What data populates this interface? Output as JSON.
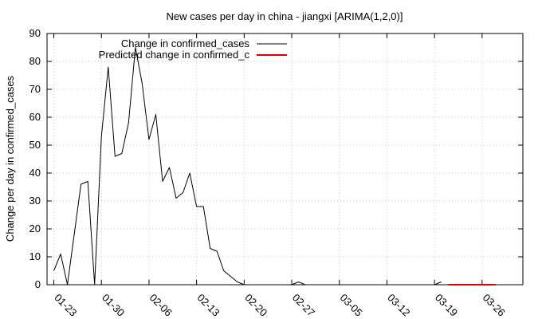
{
  "chart_data": {
    "type": "line",
    "title": "New cases per day in china - jiangxi [ARIMA(1,2,0)]",
    "xlabel": "",
    "ylabel": "Change per day in confirmed_cases",
    "ylim": [
      0,
      90
    ],
    "yticks": [
      0,
      10,
      20,
      30,
      40,
      50,
      60,
      70,
      80,
      90
    ],
    "xlim": [
      "01-22",
      "04-01"
    ],
    "xticks": [
      "01-23",
      "01-30",
      "02-06",
      "02-13",
      "02-20",
      "02-27",
      "03-05",
      "03-12",
      "03-19",
      "03-26"
    ],
    "grid": true,
    "legend_position": "top-left",
    "series": [
      {
        "name": "Change in confirmed_cases",
        "color": "#000000",
        "x": [
          "01-23",
          "01-24",
          "01-25",
          "01-26",
          "01-27",
          "01-28",
          "01-29",
          "01-30",
          "01-31",
          "02-01",
          "02-02",
          "02-03",
          "02-04",
          "02-05",
          "02-06",
          "02-07",
          "02-08",
          "02-09",
          "02-10",
          "02-11",
          "02-12",
          "02-13",
          "02-14",
          "02-15",
          "02-16",
          "02-17",
          "02-18",
          "02-19",
          "02-20",
          "02-21",
          "02-22",
          "02-23",
          "02-24",
          "02-25",
          "02-26",
          "02-27",
          "02-28",
          "02-29",
          "03-01",
          "03-02",
          "03-03",
          "03-04",
          "03-05",
          "03-06",
          "03-07",
          "03-08",
          "03-09",
          "03-10",
          "03-11",
          "03-12",
          "03-13",
          "03-14",
          "03-15",
          "03-16",
          "03-17",
          "03-18",
          "03-19",
          "03-20"
        ],
        "values": [
          5,
          11,
          0,
          18,
          36,
          37,
          0,
          53,
          78,
          46,
          47,
          58,
          85,
          72,
          52,
          61,
          37,
          42,
          31,
          33,
          40,
          28,
          28,
          13,
          12,
          5,
          3,
          1,
          0,
          0,
          0,
          0,
          0,
          0,
          0,
          0,
          1,
          0,
          0,
          0,
          0,
          0,
          0,
          0,
          0,
          0,
          0,
          0,
          0,
          0,
          0,
          0,
          0,
          0,
          0,
          0,
          0,
          1
        ]
      },
      {
        "name": "Predicted change in confirmed_c",
        "color": "#e00000",
        "x": [
          "03-21",
          "03-22",
          "03-23",
          "03-24",
          "03-25",
          "03-26",
          "03-27",
          "03-28"
        ],
        "values": [
          0,
          0,
          0,
          0,
          0,
          0,
          0,
          0
        ]
      }
    ]
  }
}
